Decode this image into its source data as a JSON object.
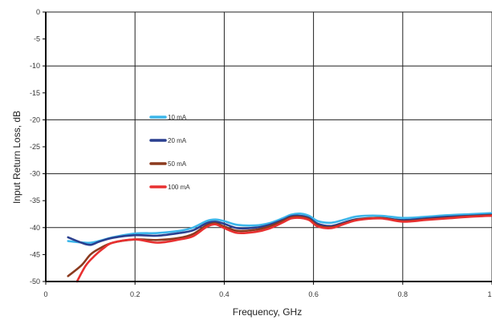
{
  "chart_data": {
    "type": "line",
    "title": "",
    "xlabel": "Frequency, GHz",
    "ylabel": "Input Return Loss, dB",
    "xlim": [
      0,
      1
    ],
    "ylim": [
      -50,
      0
    ],
    "grid": true,
    "legend_placement": "center-left",
    "x_ticks": [
      "0",
      "0.2",
      "0.4",
      "0.6",
      "0.8",
      "1"
    ],
    "y_ticks": [
      "0",
      "-5",
      "-10",
      "-15",
      "-20",
      "-25",
      "-30",
      "-35",
      "-40",
      "-45",
      "-50"
    ],
    "series": [
      {
        "name": "10 mA",
        "color": "#3cb6ea",
        "x": [
          0.05,
          0.1,
          0.15,
          0.2,
          0.25,
          0.3,
          0.33,
          0.36,
          0.38,
          0.4,
          0.43,
          0.47,
          0.5,
          0.53,
          0.55,
          0.57,
          0.59,
          0.61,
          0.64,
          0.67,
          0.7,
          0.75,
          0.8,
          0.85,
          0.9,
          0.95,
          1.0
        ],
        "y": [
          -42.5,
          -42.8,
          -41.8,
          -41.1,
          -41.0,
          -40.6,
          -40.0,
          -38.8,
          -38.5,
          -38.8,
          -39.5,
          -39.6,
          -39.2,
          -38.3,
          -37.6,
          -37.4,
          -37.8,
          -38.8,
          -39.1,
          -38.5,
          -37.9,
          -37.8,
          -38.2,
          -38.0,
          -37.7,
          -37.5,
          -37.3
        ]
      },
      {
        "name": "20 mA",
        "color": "#2a3f8f",
        "x": [
          0.05,
          0.08,
          0.1,
          0.12,
          0.15,
          0.2,
          0.25,
          0.3,
          0.33,
          0.36,
          0.38,
          0.4,
          0.43,
          0.47,
          0.5,
          0.53,
          0.55,
          0.57,
          0.59,
          0.61,
          0.64,
          0.67,
          0.7,
          0.75,
          0.8,
          0.85,
          0.9,
          0.95,
          1.0
        ],
        "y": [
          -41.8,
          -42.8,
          -43.2,
          -42.6,
          -41.9,
          -41.4,
          -41.5,
          -41.0,
          -40.5,
          -39.2,
          -38.9,
          -39.3,
          -40.1,
          -40.0,
          -39.5,
          -38.6,
          -37.9,
          -37.8,
          -38.2,
          -39.3,
          -39.7,
          -39.0,
          -38.4,
          -38.2,
          -38.6,
          -38.3,
          -38.0,
          -37.8,
          -37.6
        ]
      },
      {
        "name": "50 mA",
        "color": "#8b3a1e",
        "x": [
          0.05,
          0.08,
          0.1,
          0.12,
          0.15,
          0.2,
          0.25,
          0.3,
          0.33,
          0.36,
          0.38,
          0.4,
          0.43,
          0.47,
          0.5,
          0.53,
          0.55,
          0.57,
          0.59,
          0.61,
          0.64,
          0.67,
          0.7,
          0.75,
          0.8,
          0.85,
          0.9,
          0.95,
          1.0
        ],
        "y": [
          -49.0,
          -47.0,
          -45.0,
          -43.9,
          -42.8,
          -42.2,
          -42.3,
          -41.9,
          -41.2,
          -39.6,
          -39.2,
          -39.8,
          -40.6,
          -40.4,
          -39.8,
          -38.8,
          -38.1,
          -38.0,
          -38.4,
          -39.6,
          -39.9,
          -39.2,
          -38.5,
          -38.2,
          -38.8,
          -38.5,
          -38.2,
          -37.9,
          -37.7
        ]
      },
      {
        "name": "100 mA",
        "color": "#e83030",
        "x": [
          0.07,
          0.09,
          0.11,
          0.13,
          0.15,
          0.2,
          0.25,
          0.3,
          0.33,
          0.36,
          0.38,
          0.4,
          0.43,
          0.47,
          0.5,
          0.53,
          0.55,
          0.57,
          0.59,
          0.61,
          0.64,
          0.67,
          0.7,
          0.75,
          0.8,
          0.85,
          0.9,
          0.95,
          1.0
        ],
        "y": [
          -50.0,
          -47.0,
          -45.2,
          -43.8,
          -42.8,
          -42.2,
          -42.8,
          -42.2,
          -41.6,
          -39.9,
          -39.4,
          -40.1,
          -41.0,
          -40.8,
          -40.2,
          -39.1,
          -38.3,
          -38.2,
          -38.6,
          -39.8,
          -40.1,
          -39.3,
          -38.6,
          -38.3,
          -38.9,
          -38.6,
          -38.3,
          -38.0,
          -37.8
        ]
      }
    ]
  }
}
